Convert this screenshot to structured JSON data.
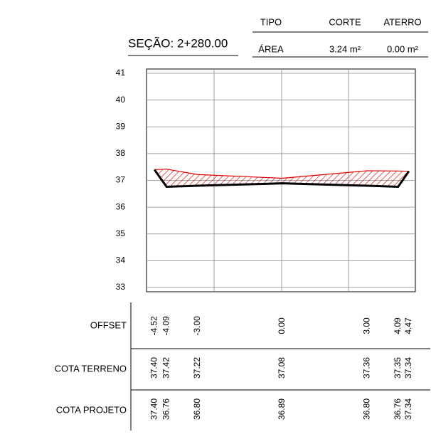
{
  "header": {
    "columns": [
      "TIPO",
      "CORTE",
      "ATERRO"
    ],
    "row": [
      "ÁREA",
      "3.24 m²",
      "0.00 m²"
    ]
  },
  "section": "SEÇÃO: 2+280.00",
  "chart_data": {
    "type": "line",
    "x_name": "OFFSET",
    "x": [
      -4.52,
      -4.09,
      -3,
      0,
      3,
      4.09,
      4.47
    ],
    "x_labels": [
      "-4.52",
      "-4.09",
      "-3.00",
      "0.00",
      "3.00",
      "4.09",
      "4.47"
    ],
    "xlim": [
      -4.8,
      4.7
    ],
    "ylim": [
      33,
      41
    ],
    "yticks": [
      33,
      34,
      35,
      36,
      37,
      38,
      39,
      40,
      41
    ],
    "series": [
      {
        "name": "COTA TERRENO",
        "color": "#e00000",
        "values": [
          37.4,
          37.42,
          37.22,
          37.08,
          37.36,
          37.35,
          37.34
        ],
        "value_labels": [
          "37.40",
          "37.42",
          "37.22",
          "37.08",
          "37.36",
          "37.35",
          "37.34"
        ]
      },
      {
        "name": "COTA PROJETO",
        "color": "#000000",
        "values": [
          37.4,
          36.76,
          36.8,
          36.89,
          36.8,
          36.76,
          37.34
        ],
        "value_labels": [
          "37.40",
          "36.76",
          "36.80",
          "36.89",
          "36.80",
          "36.76",
          "37.34"
        ]
      }
    ]
  }
}
